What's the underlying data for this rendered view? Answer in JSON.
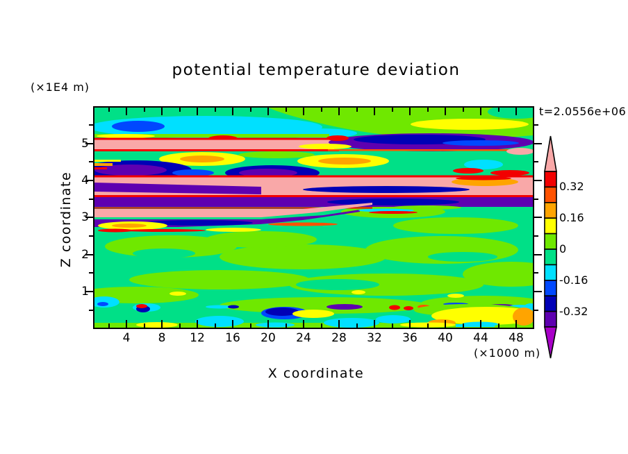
{
  "title": "potential temperature deviation",
  "time_label": "t=2.0556e+06",
  "axes": {
    "y_unit": "(×1E4 m)",
    "x_unit": "(×1000 m)",
    "x_label": "X coordinate",
    "y_label": "Z coordinate",
    "x_tick_labels": [
      "4",
      "8",
      "12",
      "16",
      "20",
      "24",
      "28",
      "32",
      "36",
      "40",
      "44",
      "48"
    ],
    "y_tick_labels": [
      "1",
      "2",
      "3",
      "4",
      "5"
    ]
  },
  "colorbar": {
    "labels": [
      "0.32",
      "0.16",
      "0",
      "-0.16",
      "-0.32"
    ],
    "segment_colors_top_to_bottom": [
      "red",
      "orangered",
      "orange",
      "yellow",
      "chartreuse",
      "green",
      "cyan",
      "blue",
      "navy",
      "indigo"
    ],
    "arrow_top_color": "pink",
    "arrow_bottom_color": "violet"
  },
  "palette": {
    "pink": "#F9A8A8",
    "red": "#F20000",
    "orangered": "#FF5200",
    "orange": "#FFA400",
    "yellow": "#FFFF00",
    "chartreuse": "#6FE800",
    "green": "#00E087",
    "cyan": "#00E0FF",
    "blue": "#0048FF",
    "navy": "#0000B6",
    "indigo": "#5E00B0",
    "violet": "#A800C8"
  },
  "chart_data": {
    "type": "heatmap",
    "title": "potential temperature deviation",
    "xlabel": "X coordinate",
    "ylabel": "Z coordinate",
    "x_units_note": "(×1000 m)",
    "y_units_note": "(×1E4 m)",
    "time_annotation": "t=2.0556e+06",
    "x_range": [
      0,
      50
    ],
    "y_range": [
      0,
      6
    ],
    "x_tick_values": [
      4,
      8,
      12,
      16,
      20,
      24,
      28,
      32,
      36,
      40,
      44,
      48
    ],
    "x_minor_tick_values": [
      2,
      6,
      10,
      14,
      18,
      22,
      26,
      30,
      34,
      38,
      42,
      46
    ],
    "y_tick_values": [
      1,
      2,
      3,
      4,
      5
    ],
    "y_minor_tick_values": [
      0.5,
      1.5,
      2.5,
      3.5,
      4.5,
      5.5
    ],
    "contour_interval": 0.08,
    "contour_levels": [
      -0.4,
      -0.32,
      -0.24,
      -0.16,
      -0.08,
      0,
      0.08,
      0.16,
      0.24,
      0.32,
      0.4
    ],
    "colorbar_tick_labels": [
      "0.32",
      "0.16",
      "0",
      "-0.16",
      "-0.32"
    ],
    "field_summary": "Mostly near-zero (green) field with strong wavy horizontal bands of alternating positive (pink/red/orange/yellow) and negative (purple/navy/blue) deviation between z≈3.5e4 and 5.3e4 m, cyan/blue pocket near top-left, mottled weak field mid-levels, and a thin layer of small positive/negative speckles near z≈0.5e4 m.",
    "field_shapes": [
      [
        "r",
        "green",
        0,
        0,
        631,
        317
      ],
      [
        "e",
        "chartreuse",
        110,
        200,
        95,
        16
      ],
      [
        "e",
        "chartreuse",
        300,
        215,
        120,
        18
      ],
      [
        "e",
        "chartreuse",
        500,
        205,
        110,
        20
      ],
      [
        "e",
        "chartreuse",
        180,
        248,
        130,
        14
      ],
      [
        "e",
        "chartreuse",
        420,
        255,
        140,
        16
      ],
      [
        "e",
        "chartreuse",
        600,
        240,
        70,
        18
      ],
      [
        "e",
        "chartreuse",
        60,
        270,
        90,
        12
      ],
      [
        "e",
        "chartreuse",
        330,
        285,
        150,
        12
      ],
      [
        "e",
        "chartreuse",
        560,
        282,
        90,
        11
      ],
      [
        "e",
        "chartreuse",
        240,
        190,
        80,
        12
      ],
      [
        "e",
        "chartreuse",
        520,
        170,
        90,
        12
      ],
      [
        "e",
        "chartreuse",
        430,
        150,
        75,
        9
      ],
      [
        "e",
        "green",
        100,
        210,
        45,
        7
      ],
      [
        "e",
        "green",
        350,
        255,
        60,
        8
      ],
      [
        "e",
        "green",
        530,
        215,
        50,
        7
      ],
      [
        "e",
        "yellow",
        120,
        268,
        12,
        3
      ],
      [
        "e",
        "yellow",
        380,
        266,
        10,
        3
      ],
      [
        "e",
        "yellow",
        520,
        271,
        12,
        3
      ],
      [
        "p",
        "chartreuse",
        "M250,0 L631,0 L631,40 C520,50 420,44 340,26 C300,17 268,8 250,0 Z"
      ],
      [
        "e",
        "green",
        608,
        6,
        42,
        10
      ],
      [
        "e",
        "yellow",
        540,
        24,
        85,
        8
      ],
      [
        "e",
        "cyan",
        160,
        28,
        168,
        16
      ],
      [
        "e",
        "cyan",
        320,
        37,
        58,
        7
      ],
      [
        "e",
        "blue",
        63,
        27,
        38,
        8
      ],
      [
        "r",
        "chartreuse",
        0,
        38,
        338,
        5
      ],
      [
        "e",
        "yellow",
        45,
        41,
        42,
        3
      ],
      [
        "e",
        "red",
        185,
        45,
        22,
        5
      ],
      [
        "r",
        "pink",
        0,
        46,
        345,
        15
      ],
      [
        "r",
        "red",
        0,
        43.5,
        345,
        3
      ],
      [
        "r",
        "red",
        0,
        60,
        352,
        3
      ],
      [
        "e",
        "indigo",
        485,
        50,
        148,
        13
      ],
      [
        "e",
        "navy",
        468,
        46,
        95,
        7
      ],
      [
        "e",
        "blue",
        556,
        51,
        55,
        4
      ],
      [
        "r",
        "orangered",
        336,
        60,
        295,
        2.5
      ],
      [
        "e",
        "pink",
        613,
        63,
        20,
        5
      ],
      [
        "e",
        "red",
        350,
        44,
        16,
        4
      ],
      [
        "e",
        "yellow",
        332,
        56,
        38,
        4
      ],
      [
        "e",
        "yellow",
        155,
        74,
        62,
        10
      ],
      [
        "e",
        "orange",
        155,
        74,
        32,
        5
      ],
      [
        "e",
        "yellow",
        358,
        77,
        66,
        10
      ],
      [
        "e",
        "orange",
        360,
        77,
        38,
        5
      ],
      [
        "e",
        "chartreuse",
        262,
        68,
        55,
        5
      ],
      [
        "e",
        "cyan",
        560,
        82,
        28,
        7
      ],
      [
        "e",
        "red",
        538,
        91,
        22,
        4
      ],
      [
        "e",
        "red",
        598,
        94,
        28,
        4
      ],
      [
        "e",
        "navy",
        60,
        90,
        80,
        14
      ],
      [
        "e",
        "indigo",
        52,
        90,
        52,
        8
      ],
      [
        "e",
        "blue",
        142,
        94,
        30,
        5
      ],
      [
        "e",
        "navy",
        256,
        94,
        68,
        11
      ],
      [
        "e",
        "indigo",
        250,
        94,
        42,
        6
      ],
      [
        "r",
        "orange",
        0,
        80,
        26,
        4
      ],
      [
        "r",
        "red",
        0,
        86,
        18,
        3
      ],
      [
        "r",
        "yellow",
        0,
        75,
        38,
        3
      ],
      [
        "r",
        "pink",
        0,
        100,
        631,
        27
      ],
      [
        "r",
        "red",
        0,
        97.5,
        631,
        3
      ],
      [
        "r",
        "red",
        0,
        126,
        631,
        3
      ],
      [
        "p",
        "indigo",
        "M0,108 L240,114 L240,125 L0,121 Z"
      ],
      [
        "e",
        "navy",
        420,
        118,
        120,
        5
      ],
      [
        "e",
        "orange",
        562,
        107,
        48,
        6
      ],
      [
        "e",
        "red",
        560,
        102,
        40,
        2.5
      ],
      [
        "r",
        "indigo",
        0,
        129,
        631,
        14
      ],
      [
        "e",
        "navy",
        430,
        136,
        95,
        5
      ],
      [
        "r",
        "red",
        0,
        143.5,
        400,
        2
      ],
      [
        "p",
        "pink",
        "M0,146 L300,146 L400,137 L400,140 L320,151 L240,158 L0,158 Z"
      ],
      [
        "p",
        "indigo",
        "M0,161 L240,161 L330,155 L382,147 L382,150 L300,162 L238,168 L120,172 L0,172 Z"
      ],
      [
        "e",
        "navy",
        150,
        166,
        78,
        4
      ],
      [
        "e",
        "yellow",
        55,
        170,
        50,
        6
      ],
      [
        "e",
        "orange",
        50,
        170,
        25,
        3
      ],
      [
        "e",
        "red",
        30,
        177,
        25,
        2.5
      ],
      [
        "e",
        "red",
        100,
        177,
        60,
        2
      ],
      [
        "e",
        "orangered",
        300,
        168,
        50,
        2.5
      ],
      [
        "e",
        "yellow",
        200,
        176,
        40,
        3
      ],
      [
        "e",
        "cyan",
        420,
        148,
        40,
        2.5
      ],
      [
        "e",
        "chartreuse",
        478,
        144,
        50,
        3
      ],
      [
        "e",
        "red",
        430,
        151,
        35,
        2
      ],
      [
        "e",
        "cyan",
        14,
        280,
        22,
        8
      ],
      [
        "e",
        "blue",
        12,
        283,
        8,
        3
      ],
      [
        "e",
        "cyan",
        75,
        288,
        20,
        6
      ],
      [
        "e",
        "navy",
        70,
        290,
        10,
        5
      ],
      [
        "e",
        "red",
        68,
        286,
        8,
        3
      ],
      [
        "e",
        "cyan",
        180,
        287,
        20,
        2.5
      ],
      [
        "e",
        "navy",
        200,
        287,
        8,
        2.5
      ],
      [
        "e",
        "blue",
        274,
        296,
        34,
        9
      ],
      [
        "e",
        "navy",
        270,
        294,
        24,
        6
      ],
      [
        "e",
        "indigo",
        360,
        287,
        26,
        4
      ],
      [
        "e",
        "red",
        432,
        288,
        8,
        3.5
      ],
      [
        "e",
        "red",
        452,
        289,
        7,
        3
      ],
      [
        "e",
        "orangered",
        474,
        287,
        9,
        3
      ],
      [
        "e",
        "pink",
        500,
        288,
        13,
        3
      ],
      [
        "e",
        "blue",
        520,
        283,
        18,
        2
      ],
      [
        "e",
        "cyan",
        540,
        288,
        18,
        3
      ],
      [
        "e",
        "blue",
        560,
        289,
        10,
        2.5
      ],
      [
        "e",
        "indigo",
        585,
        286,
        20,
        3
      ],
      [
        "e",
        "cyan",
        612,
        287,
        16,
        3
      ],
      [
        "e",
        "cyan",
        628,
        288,
        10,
        6
      ],
      [
        "r",
        "chartreuse",
        0,
        310,
        631,
        7
      ],
      [
        "e",
        "chartreuse",
        540,
        292,
        80,
        9
      ],
      [
        "e",
        "cyan",
        180,
        308,
        35,
        8
      ],
      [
        "e",
        "cyan",
        370,
        310,
        40,
        7
      ],
      [
        "e",
        "cyan",
        430,
        305,
        25,
        6
      ],
      [
        "e",
        "yellow",
        315,
        297,
        30,
        6
      ],
      [
        "e",
        "yellow",
        565,
        300,
        80,
        13
      ],
      [
        "e",
        "orange",
        618,
        301,
        16,
        13
      ],
      [
        "e",
        "orange",
        500,
        310,
        20,
        5
      ],
      [
        "r",
        "cyan",
        520,
        312,
        56,
        4
      ],
      [
        "e",
        "yellow",
        90,
        313,
        30,
        4
      ],
      [
        "e",
        "yellow",
        480,
        313,
        40,
        3.5
      ],
      [
        "e",
        "cyan",
        260,
        313,
        28,
        3.5
      ],
      [
        "e",
        "cyan",
        555,
        312,
        26,
        3.5
      ]
    ]
  }
}
